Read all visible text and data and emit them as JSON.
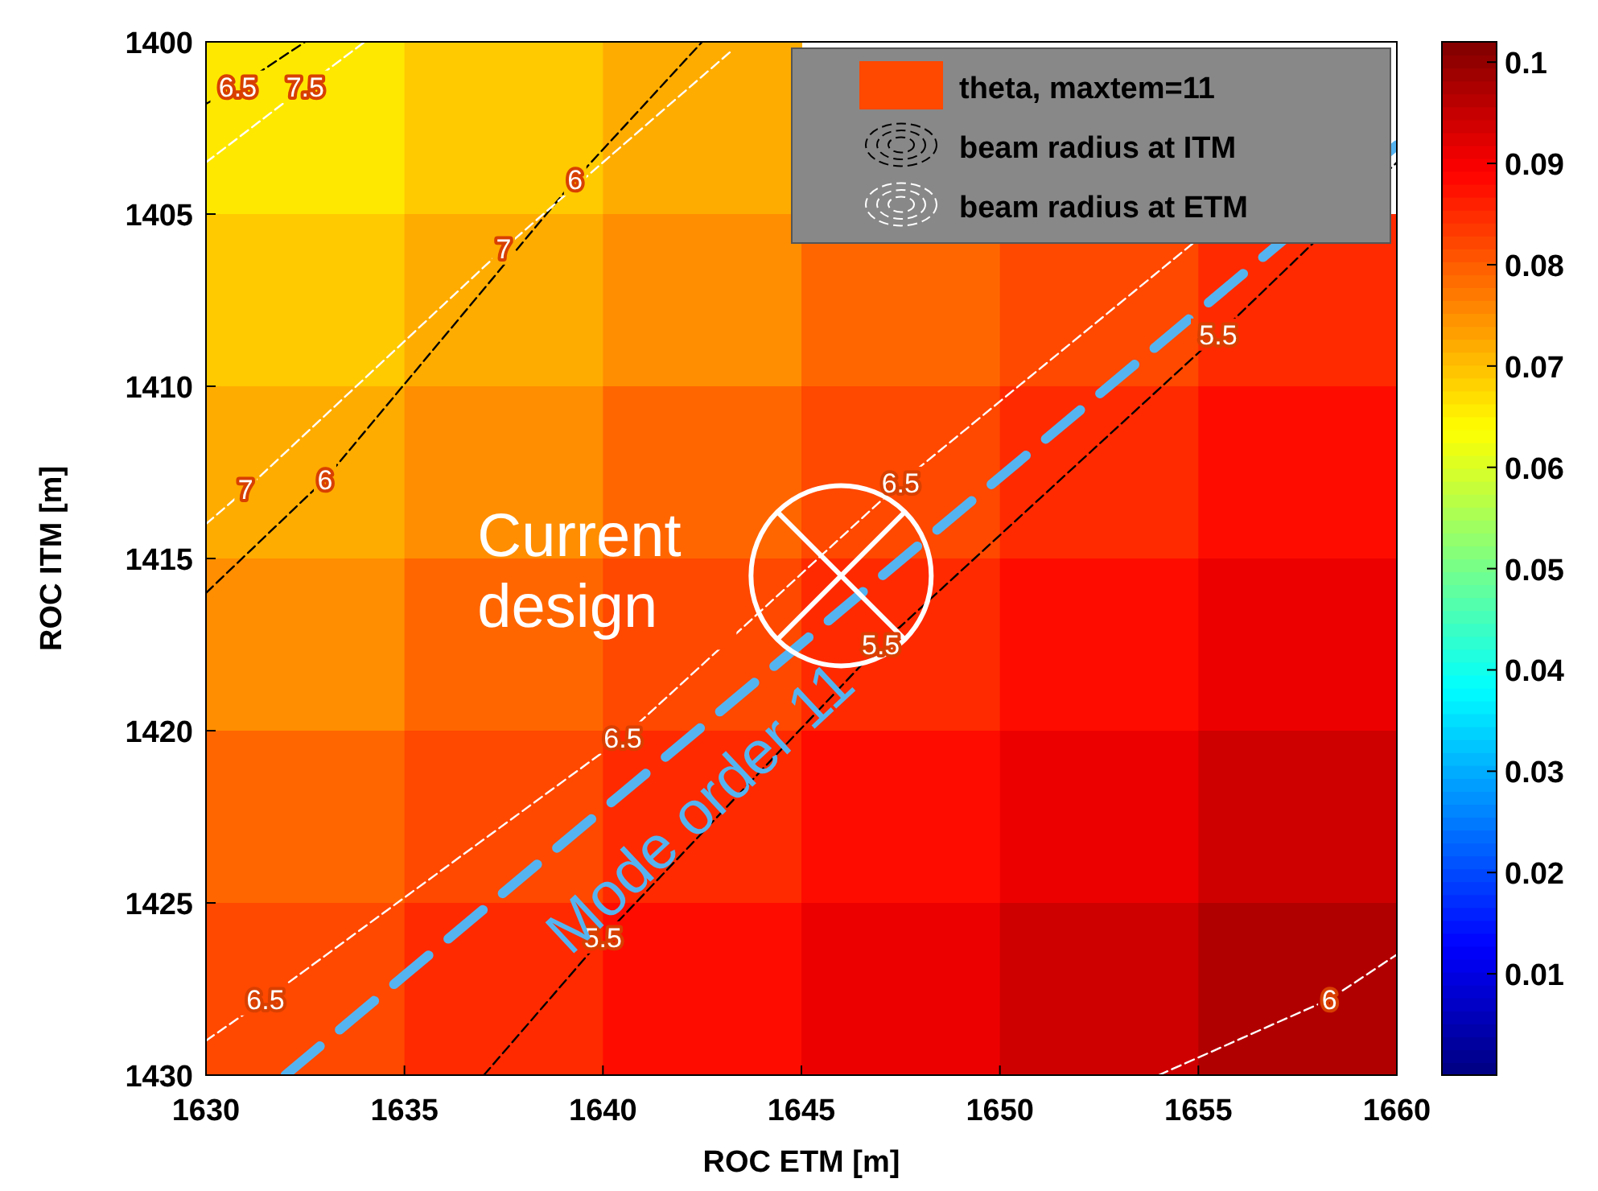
{
  "chart_data": {
    "type": "heatmap",
    "xlabel": "ROC ETM [m]",
    "ylabel": "ROC ITM [m]",
    "xlim": [
      1630,
      1660
    ],
    "xticks": [
      1630,
      1635,
      1640,
      1645,
      1650,
      1655,
      1660
    ],
    "ylim": [
      1430,
      1400
    ],
    "yticks": [
      1400,
      1405,
      1410,
      1415,
      1420,
      1425,
      1430
    ],
    "clim": [
      0,
      0.102
    ],
    "cticks": [
      0.01,
      0.02,
      0.03,
      0.04,
      0.05,
      0.06,
      0.07,
      0.08,
      0.09,
      0.1
    ],
    "legend": "top right",
    "cells": [
      [
        0.066,
        0.069,
        0.072,
        null,
        null,
        null
      ],
      [
        0.069,
        0.072,
        0.075,
        0.079,
        0.082,
        0.085
      ],
      [
        0.072,
        0.075,
        0.079,
        0.082,
        0.085,
        0.088
      ],
      [
        0.075,
        0.079,
        0.082,
        0.085,
        0.088,
        0.091
      ],
      [
        0.079,
        0.082,
        0.085,
        0.088,
        0.091,
        0.094
      ],
      [
        0.082,
        0.085,
        0.088,
        0.091,
        0.094,
        0.097
      ]
    ],
    "series": [
      {
        "type": "heatmap",
        "name": "theta, maxtem=11"
      },
      {
        "type": "line",
        "name": "beam radius at ITM",
        "color": "#000000",
        "line_style": "dashed",
        "x": [
          1630,
          1630.8,
          1632.5,
          null,
          1630,
          1633,
          1639.3,
          1642.5,
          null,
          1637,
          1640,
          1647,
          1655.5,
          1660
        ],
        "values": [
          1401.8,
          1401.3,
          1400,
          null,
          1416,
          1412.7,
          1404,
          1400,
          null,
          1430,
          1426,
          1417.5,
          1408.5,
          1403.5
        ]
      },
      {
        "type": "line",
        "name": "beam radius at ETM",
        "color": "#ffffff",
        "line_style": "dashed",
        "x": [
          1630,
          1632.5,
          1634,
          null,
          1630,
          1631,
          1637.5,
          1643.2,
          null,
          1630,
          1631.5,
          1640.5,
          1647.5,
          1660,
          null,
          1654,
          1658.3,
          1660
        ],
        "values": [
          1403.5,
          1401.3,
          1400,
          null,
          1414,
          1413,
          1406,
          1400.3,
          null,
          1429,
          1427.8,
          1420.2,
          1412.8,
          1401,
          null,
          1430,
          1427.8,
          1426.5
        ]
      },
      {
        "type": "line",
        "color": "#55b4f0",
        "line_style": "dashed",
        "x": [
          1632,
          1660
        ],
        "values": [
          1430,
          1403
        ]
      },
      {
        "type": "scatter",
        "color": "#ffffff",
        "marker": "circle",
        "x": [
          1646
        ],
        "values": [
          1415.5
        ]
      }
    ],
    "annotations": [
      {
        "text": "6.5",
        "x": 1630.8,
        "y": 1401.3
      },
      {
        "text": "7.5",
        "x": 1632.5,
        "y": 1401.3
      },
      {
        "text": "6",
        "x": 1639.3,
        "y": 1404
      },
      {
        "text": "7",
        "x": 1637.5,
        "y": 1406
      },
      {
        "text": "7",
        "x": 1631,
        "y": 1413
      },
      {
        "text": "6",
        "x": 1633,
        "y": 1412.7
      },
      {
        "text": "5.5",
        "x": 1655.5,
        "y": 1408.5
      },
      {
        "text": "6.5",
        "x": 1647.5,
        "y": 1412.8
      },
      {
        "text": "5.5",
        "x": 1647,
        "y": 1417.5
      },
      {
        "text": "6.5",
        "x": 1640.5,
        "y": 1420.2
      },
      {
        "text": "5.5",
        "x": 1640,
        "y": 1426
      },
      {
        "text": "6.5",
        "x": 1631.5,
        "y": 1427.8
      },
      {
        "text": "6",
        "x": 1658.3,
        "y": 1427.8
      },
      {
        "text": "Current design",
        "x": 1646,
        "y": 1415.5
      },
      {
        "text": "Mode order 11",
        "x": 1641.5,
        "y": 1420.8
      }
    ]
  }
}
